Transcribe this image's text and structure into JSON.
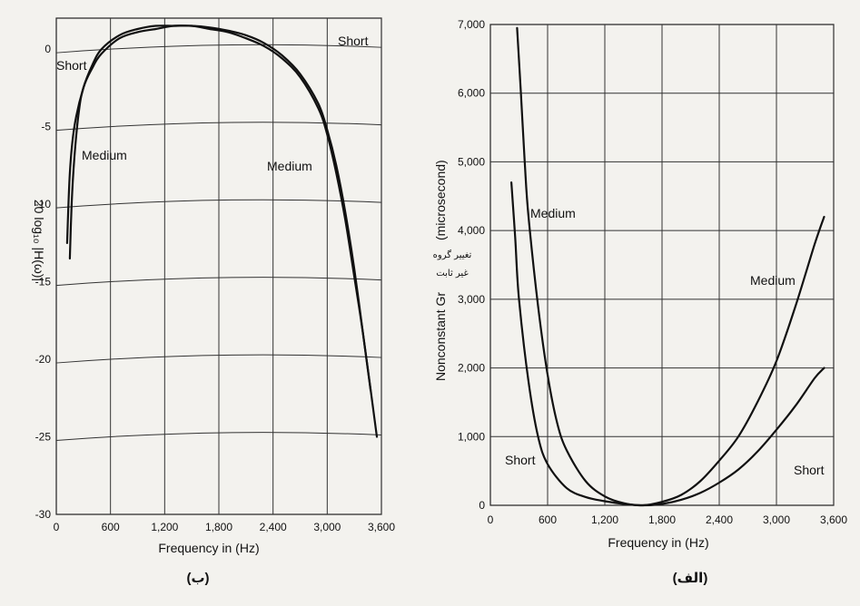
{
  "chart_data": [
    {
      "panel_label": "(ب)",
      "type": "line",
      "xlabel": "Frequency in (Hz)",
      "ylabel": "20 log₁₀ |H(ω)|",
      "xlim": [
        0,
        3600
      ],
      "ylim": [
        -30,
        2
      ],
      "xticks": [
        0,
        600,
        1200,
        1800,
        2400,
        3000,
        3600
      ],
      "xtick_labels": [
        "0",
        "600",
        "1,200",
        "1,800",
        "2,400",
        "3,000",
        "3,600"
      ],
      "yticks": [
        0,
        -5,
        -10,
        -15,
        -20,
        -25,
        -30
      ],
      "ytick_labels": [
        "0",
        "-5",
        "-10",
        "-15",
        "-20",
        "-25",
        "-30"
      ],
      "grid": true,
      "series": [
        {
          "name": "Short",
          "x": [
            120,
            150,
            200,
            300,
            400,
            500,
            700,
            900,
            1100,
            1300,
            1500,
            1700,
            1900,
            2100,
            2300,
            2500,
            2700,
            2900,
            3000,
            3100,
            3200,
            3300,
            3400,
            3480
          ],
          "y": [
            -12.5,
            -8,
            -5,
            -2.5,
            -1.2,
            -0.3,
            0.7,
            1.1,
            1.3,
            1.5,
            1.5,
            1.4,
            1.2,
            0.9,
            0.4,
            -0.4,
            -1.6,
            -3.5,
            -5.2,
            -7.5,
            -10.5,
            -14.2,
            -18.5,
            -22
          ]
        },
        {
          "name": "Medium",
          "x": [
            150,
            170,
            200,
            250,
            300,
            400,
            500,
            700,
            900,
            1100,
            1300,
            1500,
            1700,
            1900,
            2100,
            2300,
            2500,
            2700,
            2900,
            3000,
            3100,
            3200,
            3300,
            3400,
            3550
          ],
          "y": [
            -13.5,
            -10,
            -7,
            -4,
            -2.5,
            -1,
            0,
            0.9,
            1.3,
            1.5,
            1.5,
            1.5,
            1.3,
            1.1,
            0.7,
            0.2,
            -0.6,
            -1.8,
            -3.8,
            -5.5,
            -8,
            -11,
            -14.7,
            -18.5,
            -25
          ]
        }
      ],
      "labels": {
        "short_left": "Short",
        "short_right": "Short",
        "medium_left": "Medium",
        "medium_right": "Medium"
      }
    },
    {
      "panel_label": "(الف)",
      "type": "line",
      "xlabel": "Frequency in (Hz)",
      "ylabel": "Nonconstant Gr",
      "ylabel_units": "(microsecond)",
      "ylabel_persian": [
        "تغییر گروه",
        "غیر ثابت"
      ],
      "xlim": [
        0,
        3600
      ],
      "ylim": [
        0,
        7000
      ],
      "xticks": [
        0,
        600,
        1200,
        1800,
        2400,
        3000,
        3600
      ],
      "xtick_labels": [
        "0",
        "600",
        "1,200",
        "1,800",
        "2,400",
        "3,000",
        "3,600"
      ],
      "yticks": [
        0,
        1000,
        2000,
        3000,
        4000,
        5000,
        6000,
        7000
      ],
      "ytick_labels": [
        "0",
        "1,000",
        "2,000",
        "3,000",
        "4,000",
        "5,000",
        "6,000",
        "7,000"
      ],
      "grid": true,
      "series": [
        {
          "name": "Short",
          "x": [
            220,
            260,
            300,
            400,
            500,
            600,
            800,
            1000,
            1200,
            1400,
            1600,
            1800,
            2000,
            2200,
            2400,
            2600,
            2800,
            3000,
            3200,
            3400,
            3500
          ],
          "y": [
            4700,
            3900,
            3000,
            1800,
            1000,
            600,
            250,
            120,
            60,
            20,
            0,
            20,
            80,
            180,
            330,
            520,
            780,
            1100,
            1450,
            1850,
            2000
          ]
        },
        {
          "name": "Medium",
          "x": [
            280,
            320,
            360,
            400,
            500,
            600,
            700,
            800,
            1000,
            1200,
            1400,
            1600,
            1800,
            2000,
            2200,
            2400,
            2600,
            2800,
            3000,
            3200,
            3400,
            3500
          ],
          "y": [
            6950,
            6000,
            5000,
            4200,
            2900,
            1900,
            1200,
            800,
            350,
            130,
            30,
            0,
            50,
            150,
            350,
            650,
            1000,
            1500,
            2100,
            2900,
            3800,
            4200
          ]
        }
      ],
      "labels": {
        "medium_upper": "Medium",
        "medium_right": "Medium",
        "short_left": "Short",
        "short_right": "Short"
      }
    }
  ]
}
